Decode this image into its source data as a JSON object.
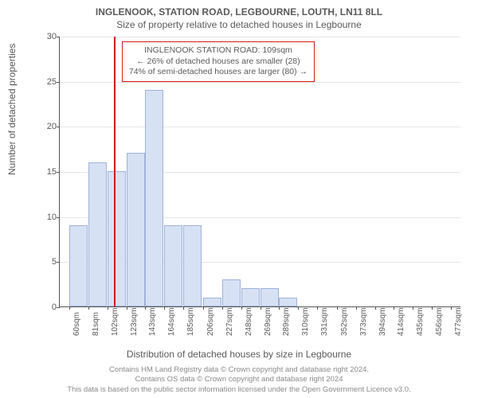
{
  "title_main": "INGLENOOK, STATION ROAD, LEGBOURNE, LOUTH, LN11 8LL",
  "title_sub": "Size of property relative to detached houses in Legbourne",
  "y_axis_label": "Number of detached properties",
  "x_axis_label": "Distribution of detached houses by size in Legbourne",
  "footer_line1": "Contains HM Land Registry data © Crown copyright and database right 2024.",
  "footer_line2": "Contains OS data © Crown copyright and database right 2024",
  "footer_line3": "This data is based on the public sector information licensed under the Open Government Licence v3.0.",
  "chart": {
    "type": "histogram",
    "ylim": [
      0,
      30
    ],
    "ytick_step": 5,
    "background_color": "#ffffff",
    "grid_color": "#e6e6e6",
    "bar_fill": "#d7e1f4",
    "bar_border": "#9fb2d9",
    "ref_line_color": "#d11a1a",
    "ref_line_x": 109,
    "x_min": 50,
    "x_max": 488,
    "bar_width_sqm": 21,
    "x_ticks": [
      {
        "pos": 60,
        "label": "60sqm"
      },
      {
        "pos": 81,
        "label": "81sqm"
      },
      {
        "pos": 102,
        "label": "102sqm"
      },
      {
        "pos": 123,
        "label": "123sqm"
      },
      {
        "pos": 143,
        "label": "143sqm"
      },
      {
        "pos": 164,
        "label": "164sqm"
      },
      {
        "pos": 185,
        "label": "185sqm"
      },
      {
        "pos": 206,
        "label": "206sqm"
      },
      {
        "pos": 227,
        "label": "227sqm"
      },
      {
        "pos": 248,
        "label": "248sqm"
      },
      {
        "pos": 269,
        "label": "269sqm"
      },
      {
        "pos": 289,
        "label": "289sqm"
      },
      {
        "pos": 310,
        "label": "310sqm"
      },
      {
        "pos": 331,
        "label": "331sqm"
      },
      {
        "pos": 352,
        "label": "352sqm"
      },
      {
        "pos": 373,
        "label": "373sqm"
      },
      {
        "pos": 394,
        "label": "394sqm"
      },
      {
        "pos": 414,
        "label": "414sqm"
      },
      {
        "pos": 435,
        "label": "435sqm"
      },
      {
        "pos": 456,
        "label": "456sqm"
      },
      {
        "pos": 477,
        "label": "477sqm"
      }
    ],
    "bars": [
      {
        "x": 60,
        "y": 9
      },
      {
        "x": 81,
        "y": 16
      },
      {
        "x": 102,
        "y": 15
      },
      {
        "x": 123,
        "y": 17
      },
      {
        "x": 143,
        "y": 24
      },
      {
        "x": 164,
        "y": 9
      },
      {
        "x": 185,
        "y": 9
      },
      {
        "x": 206,
        "y": 1
      },
      {
        "x": 227,
        "y": 3
      },
      {
        "x": 248,
        "y": 2
      },
      {
        "x": 269,
        "y": 2
      },
      {
        "x": 289,
        "y": 1
      },
      {
        "x": 310,
        "y": 0
      },
      {
        "x": 331,
        "y": 0
      },
      {
        "x": 352,
        "y": 0
      },
      {
        "x": 373,
        "y": 0
      },
      {
        "x": 394,
        "y": 0
      },
      {
        "x": 414,
        "y": 0
      },
      {
        "x": 435,
        "y": 0
      },
      {
        "x": 456,
        "y": 0
      },
      {
        "x": 477,
        "y": 0
      }
    ]
  },
  "callout": {
    "line1": "INGLENOOK STATION ROAD: 109sqm",
    "line2": "← 26% of detached houses are smaller (28)",
    "line3": "74% of semi-detached houses are larger (80) →"
  }
}
